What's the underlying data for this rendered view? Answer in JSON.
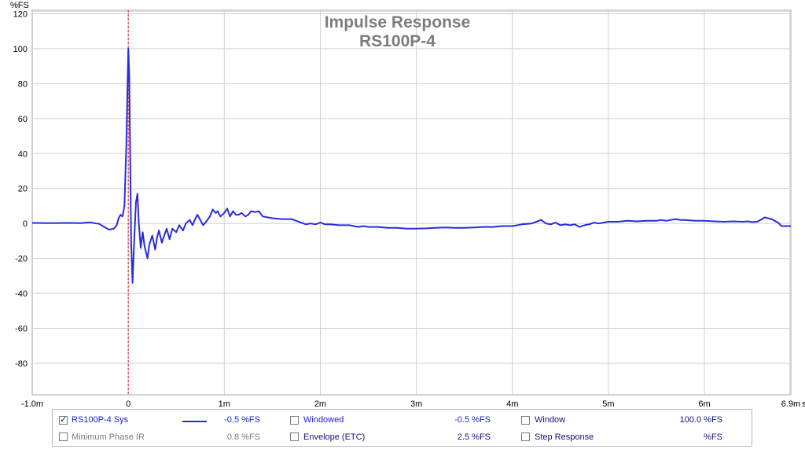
{
  "chart_data": {
    "type": "line",
    "title": "Impulse Response",
    "subtitle": "RS100P-4",
    "ylabel": "%FS",
    "x_unit_label": "s",
    "xlim": [
      -1.0,
      6.9
    ],
    "ylim": [
      -98,
      122
    ],
    "y_ticks": [
      120,
      100,
      80,
      60,
      40,
      20,
      0,
      -20,
      -40,
      -60,
      -80
    ],
    "x_ticks": [
      {
        "v": -1.0,
        "label": "-1.0m"
      },
      {
        "v": 0,
        "label": "0"
      },
      {
        "v": 1,
        "label": "1m"
      },
      {
        "v": 2,
        "label": "2m"
      },
      {
        "v": 3,
        "label": "3m"
      },
      {
        "v": 4,
        "label": "4m"
      },
      {
        "v": 5,
        "label": "5m"
      },
      {
        "v": 6,
        "label": "6m"
      },
      {
        "v": 6.9,
        "label": "6.9m"
      }
    ],
    "grid": true,
    "marker_x": 0,
    "series": [
      {
        "name": "RS100P-4 Sys",
        "color": "#2b2bdc",
        "x_unit": "ms",
        "points": [
          [
            -1.0,
            0.3
          ],
          [
            -0.8,
            0.2
          ],
          [
            -0.6,
            0.3
          ],
          [
            -0.5,
            0.2
          ],
          [
            -0.4,
            0.6
          ],
          [
            -0.3,
            -0.3
          ],
          [
            -0.25,
            -2
          ],
          [
            -0.2,
            -3.5
          ],
          [
            -0.15,
            -3
          ],
          [
            -0.12,
            -1
          ],
          [
            -0.1,
            3
          ],
          [
            -0.08,
            5
          ],
          [
            -0.06,
            4
          ],
          [
            -0.04,
            10
          ],
          [
            -0.02,
            45
          ],
          [
            0.0,
            100
          ],
          [
            0.01,
            85
          ],
          [
            0.02,
            40
          ],
          [
            0.03,
            -10
          ],
          [
            0.045,
            -34
          ],
          [
            0.06,
            -12
          ],
          [
            0.08,
            12
          ],
          [
            0.095,
            17
          ],
          [
            0.11,
            0
          ],
          [
            0.13,
            -14
          ],
          [
            0.15,
            -5
          ],
          [
            0.17,
            -13
          ],
          [
            0.2,
            -20
          ],
          [
            0.22,
            -12
          ],
          [
            0.25,
            -7
          ],
          [
            0.28,
            -15
          ],
          [
            0.3,
            -8
          ],
          [
            0.32,
            -4
          ],
          [
            0.35,
            -11
          ],
          [
            0.38,
            -6
          ],
          [
            0.4,
            -3
          ],
          [
            0.43,
            -9
          ],
          [
            0.46,
            -3
          ],
          [
            0.5,
            -5
          ],
          [
            0.53,
            -1
          ],
          [
            0.57,
            -4
          ],
          [
            0.6,
            0
          ],
          [
            0.64,
            2
          ],
          [
            0.67,
            -1
          ],
          [
            0.7,
            3
          ],
          [
            0.72,
            5
          ],
          [
            0.75,
            2
          ],
          [
            0.78,
            -1
          ],
          [
            0.81,
            1
          ],
          [
            0.85,
            4
          ],
          [
            0.88,
            8
          ],
          [
            0.91,
            6
          ],
          [
            0.93,
            7
          ],
          [
            0.96,
            4
          ],
          [
            1.0,
            6
          ],
          [
            1.03,
            8.5
          ],
          [
            1.06,
            4
          ],
          [
            1.09,
            7
          ],
          [
            1.12,
            5
          ],
          [
            1.15,
            5
          ],
          [
            1.18,
            6
          ],
          [
            1.22,
            4
          ],
          [
            1.25,
            5
          ],
          [
            1.28,
            7
          ],
          [
            1.32,
            6.5
          ],
          [
            1.36,
            7
          ],
          [
            1.4,
            4
          ],
          [
            1.45,
            3.5
          ],
          [
            1.5,
            3
          ],
          [
            1.6,
            2.5
          ],
          [
            1.7,
            2.5
          ],
          [
            1.75,
            1.5
          ],
          [
            1.8,
            0.5
          ],
          [
            1.85,
            -0.5
          ],
          [
            1.9,
            0
          ],
          [
            1.95,
            -0.5
          ],
          [
            2.0,
            0.5
          ],
          [
            2.05,
            -0.5
          ],
          [
            2.1,
            -0.5
          ],
          [
            2.2,
            -1
          ],
          [
            2.3,
            -1
          ],
          [
            2.4,
            -2
          ],
          [
            2.45,
            -1.5
          ],
          [
            2.5,
            -2
          ],
          [
            2.6,
            -2
          ],
          [
            2.7,
            -2.5
          ],
          [
            2.8,
            -2.5
          ],
          [
            2.9,
            -3
          ],
          [
            3.0,
            -3
          ],
          [
            3.1,
            -2.8
          ],
          [
            3.2,
            -2.5
          ],
          [
            3.3,
            -2.3
          ],
          [
            3.4,
            -2.5
          ],
          [
            3.5,
            -2.5
          ],
          [
            3.6,
            -2.3
          ],
          [
            3.7,
            -2
          ],
          [
            3.8,
            -2
          ],
          [
            3.9,
            -1.5
          ],
          [
            4.0,
            -1.5
          ],
          [
            4.1,
            -0.5
          ],
          [
            4.2,
            0
          ],
          [
            4.25,
            1
          ],
          [
            4.3,
            2
          ],
          [
            4.35,
            0
          ],
          [
            4.4,
            -0.5
          ],
          [
            4.45,
            0.5
          ],
          [
            4.5,
            -1
          ],
          [
            4.55,
            -0.5
          ],
          [
            4.6,
            -1
          ],
          [
            4.65,
            -0.5
          ],
          [
            4.7,
            -2
          ],
          [
            4.75,
            -1
          ],
          [
            4.8,
            -0.5
          ],
          [
            4.85,
            0.5
          ],
          [
            4.9,
            0
          ],
          [
            4.95,
            0.5
          ],
          [
            5.0,
            1
          ],
          [
            5.1,
            1
          ],
          [
            5.2,
            1.5
          ],
          [
            5.3,
            1.2
          ],
          [
            5.4,
            1.5
          ],
          [
            5.5,
            1.5
          ],
          [
            5.55,
            2
          ],
          [
            5.6,
            1.5
          ],
          [
            5.65,
            2
          ],
          [
            5.7,
            2.5
          ],
          [
            5.75,
            2
          ],
          [
            5.8,
            2
          ],
          [
            5.9,
            1.5
          ],
          [
            6.0,
            1.5
          ],
          [
            6.1,
            1.2
          ],
          [
            6.2,
            1
          ],
          [
            6.3,
            1.2
          ],
          [
            6.4,
            1
          ],
          [
            6.45,
            1.2
          ],
          [
            6.5,
            0.8
          ],
          [
            6.55,
            1
          ],
          [
            6.6,
            2.5
          ],
          [
            6.63,
            3.5
          ],
          [
            6.66,
            3
          ],
          [
            6.7,
            2.5
          ],
          [
            6.73,
            1.5
          ],
          [
            6.77,
            0.5
          ],
          [
            6.8,
            -1.5
          ],
          [
            6.85,
            -1.5
          ],
          [
            6.9,
            -1.5
          ]
        ]
      }
    ]
  },
  "legend": {
    "rows": [
      [
        {
          "label": "RS100P-4 Sys",
          "checked": true,
          "value": "-0.5 %FS",
          "style": "blue",
          "has_swatch": true
        },
        {
          "label": "Windowed",
          "checked": false,
          "value": "-0.5 %FS",
          "style": "blue"
        },
        {
          "label": "Window",
          "checked": false,
          "value": "100.0 %FS",
          "style": "navy"
        }
      ],
      [
        {
          "label": "Minimum Phase IR",
          "checked": false,
          "value": "0.8 %FS",
          "style": "gray"
        },
        {
          "label": "Envelope (ETC)",
          "checked": false,
          "value": "2.5 %FS",
          "style": "navy"
        },
        {
          "label": "Step Response",
          "checked": false,
          "value": "%FS",
          "style": "navy"
        }
      ]
    ]
  }
}
